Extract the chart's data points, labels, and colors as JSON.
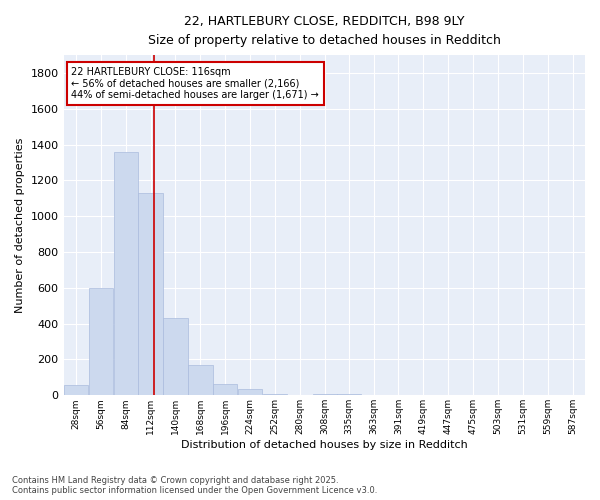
{
  "title_line1": "22, HARTLEBURY CLOSE, REDDITCH, B98 9LY",
  "title_line2": "Size of property relative to detached houses in Redditch",
  "xlabel": "Distribution of detached houses by size in Redditch",
  "ylabel": "Number of detached properties",
  "annotation_line1": "22 HARTLEBURY CLOSE: 116sqm",
  "annotation_line2": "← 56% of detached houses are smaller (2,166)",
  "annotation_line3": "44% of semi-detached houses are larger (1,671) →",
  "footer_line1": "Contains HM Land Registry data © Crown copyright and database right 2025.",
  "footer_line2": "Contains public sector information licensed under the Open Government Licence v3.0.",
  "bar_color": "#ccd9ee",
  "bar_edge_color": "#aabbdd",
  "background_color": "#eef2fb",
  "plot_bg_color": "#e8eef8",
  "grid_color": "#ffffff",
  "red_line_x": 116,
  "annotation_box_color": "#ffffff",
  "annotation_box_edge": "#cc0000",
  "categories": [
    "28sqm",
    "56sqm",
    "84sqm",
    "112sqm",
    "140sqm",
    "168sqm",
    "196sqm",
    "224sqm",
    "252sqm",
    "280sqm",
    "308sqm",
    "335sqm",
    "363sqm",
    "391sqm",
    "419sqm",
    "447sqm",
    "475sqm",
    "503sqm",
    "531sqm",
    "559sqm",
    "587sqm"
  ],
  "bin_centers": [
    28,
    56,
    84,
    112,
    140,
    168,
    196,
    224,
    252,
    280,
    308,
    335,
    363,
    391,
    419,
    447,
    475,
    503,
    531,
    559,
    587
  ],
  "bin_width": 28,
  "values": [
    60,
    600,
    1360,
    1130,
    430,
    170,
    65,
    35,
    5,
    0,
    5,
    5,
    0,
    0,
    0,
    0,
    0,
    0,
    0,
    0,
    0
  ],
  "ylim": [
    0,
    1900
  ],
  "yticks": [
    0,
    200,
    400,
    600,
    800,
    1000,
    1200,
    1400,
    1600,
    1800
  ],
  "figsize": [
    6.0,
    5.0
  ],
  "dpi": 100
}
